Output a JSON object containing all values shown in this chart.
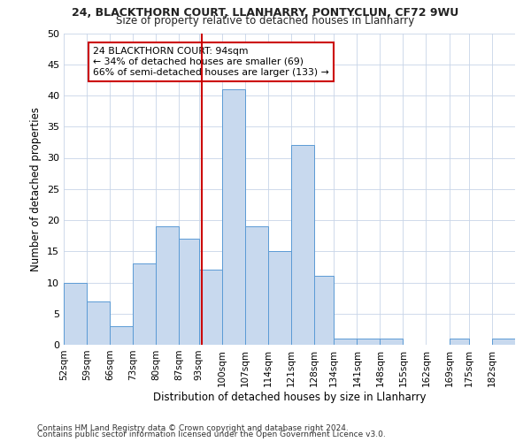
{
  "title1": "24, BLACKTHORN COURT, LLANHARRY, PONTYCLUN, CF72 9WU",
  "title2": "Size of property relative to detached houses in Llanharry",
  "xlabel": "Distribution of detached houses by size in Llanharry",
  "ylabel": "Number of detached properties",
  "bins": [
    52,
    59,
    66,
    73,
    80,
    87,
    93,
    100,
    107,
    114,
    121,
    128,
    134,
    141,
    148,
    155,
    162,
    169,
    175,
    182,
    189
  ],
  "counts": [
    10,
    7,
    3,
    13,
    19,
    17,
    12,
    41,
    19,
    15,
    32,
    11,
    1,
    1,
    1,
    0,
    0,
    1,
    0,
    1
  ],
  "bar_color": "#c8d9ee",
  "bar_edge_color": "#5b9bd5",
  "vline_x": 94,
  "vline_color": "#cc0000",
  "annotation_text": "24 BLACKTHORN COURT: 94sqm\n← 34% of detached houses are smaller (69)\n66% of semi-detached houses are larger (133) →",
  "annotation_box_edge": "#cc0000",
  "ylim": [
    0,
    50
  ],
  "yticks": [
    0,
    5,
    10,
    15,
    20,
    25,
    30,
    35,
    40,
    45,
    50
  ],
  "footer1": "Contains HM Land Registry data © Crown copyright and database right 2024.",
  "footer2": "Contains public sector information licensed under the Open Government Licence v3.0.",
  "background_color": "#ffffff",
  "grid_color": "#c8d4e8"
}
